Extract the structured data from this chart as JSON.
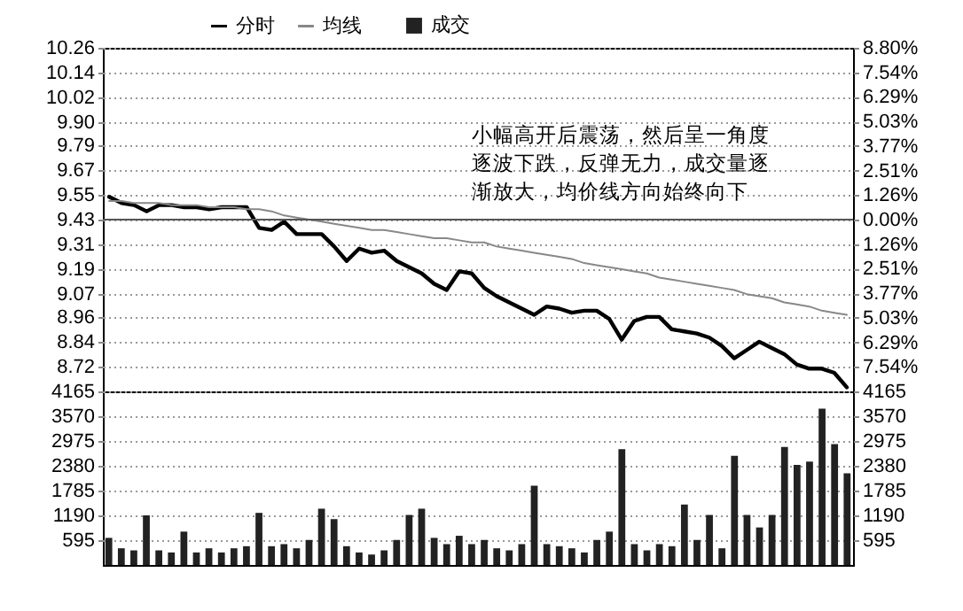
{
  "chart_data": [
    {
      "type": "line",
      "legend": "top left",
      "grid": "y",
      "tick_labels": "y",
      "categories": [
        null,
        null,
        null,
        null,
        null,
        null,
        null,
        null,
        null,
        null,
        null,
        null,
        null,
        null,
        null,
        null,
        null,
        null,
        null,
        null,
        null,
        null,
        null,
        null,
        null,
        null,
        null,
        null,
        null,
        null,
        null,
        null,
        null,
        null,
        null,
        null,
        null,
        null,
        null,
        null,
        null,
        null,
        null,
        null,
        null,
        null,
        null,
        null,
        null,
        null,
        null,
        null,
        null,
        null,
        null,
        null,
        null,
        null,
        null,
        null
      ],
      "series": [
        {
          "name": "分时",
          "color": "#000000",
          "values": [
            9.54,
            9.51,
            9.5,
            9.47,
            9.5,
            9.5,
            9.49,
            9.49,
            9.48,
            9.49,
            9.49,
            9.49,
            9.39,
            9.38,
            9.42,
            9.36,
            9.36,
            9.36,
            9.3,
            9.23,
            9.29,
            9.27,
            9.28,
            9.23,
            9.2,
            9.17,
            9.12,
            9.09,
            9.18,
            9.17,
            9.1,
            9.06,
            9.03,
            9.0,
            8.97,
            9.01,
            9.0,
            8.98,
            8.99,
            8.99,
            8.95,
            8.85,
            8.94,
            8.96,
            8.96,
            8.9,
            8.89,
            8.88,
            8.86,
            8.82,
            8.76,
            8.8,
            8.84,
            8.81,
            8.78,
            8.73,
            8.71,
            8.71,
            8.69,
            8.62
          ]
        },
        {
          "name": "均线",
          "color": "#888888",
          "values": [
            9.52,
            9.52,
            9.51,
            9.51,
            9.51,
            9.5,
            9.5,
            9.5,
            9.49,
            9.49,
            9.49,
            9.48,
            9.48,
            9.47,
            9.45,
            9.44,
            9.43,
            9.42,
            9.41,
            9.4,
            9.39,
            9.38,
            9.38,
            9.37,
            9.36,
            9.35,
            9.34,
            9.34,
            9.33,
            9.32,
            9.32,
            9.3,
            9.29,
            9.28,
            9.27,
            9.26,
            9.25,
            9.24,
            9.22,
            9.21,
            9.2,
            9.19,
            9.18,
            9.17,
            9.15,
            9.14,
            9.13,
            9.12,
            9.11,
            9.1,
            9.09,
            9.07,
            9.06,
            9.05,
            9.03,
            9.02,
            9.01,
            8.99,
            8.98,
            8.97
          ]
        }
      ],
      "ylim": [
        8.6,
        10.26
      ],
      "yticks": [
        10.26,
        10.14,
        10.02,
        {
          "value": 9.9,
          "label": "9.90"
        },
        9.79,
        9.67,
        9.55,
        9.43,
        9.31,
        9.19,
        9.07,
        8.96,
        8.84,
        8.72
      ],
      "y2lim": [
        -8.8,
        8.8
      ],
      "y2ticks": [
        {
          "value": 8.8,
          "label": "8.80%"
        },
        {
          "value": 7.54,
          "label": "7.54%"
        },
        {
          "value": 6.29,
          "label": "6.29%"
        },
        {
          "value": 5.03,
          "label": "5.03%"
        },
        {
          "value": 3.77,
          "label": "3.77%"
        },
        {
          "value": 2.51,
          "label": "2.51%"
        },
        {
          "value": 1.26,
          "label": "1.26%"
        },
        {
          "value": 0,
          "label": "0.00%"
        },
        {
          "value": -1.26,
          "label": "1.26%"
        },
        {
          "value": -2.51,
          "label": "2.51%"
        },
        {
          "value": -3.77,
          "label": "3.77%"
        },
        {
          "value": -5.03,
          "label": "5.03%"
        },
        {
          "value": -6.29,
          "label": "6.29%"
        },
        {
          "value": -7.54,
          "label": "7.54%"
        }
      ],
      "ref_lines": [
        {
          "axis": "y2",
          "value": 0,
          "color": "#555555"
        }
      ],
      "annotations": [
        "小幅高开后震荡，然后呈一角度逐波下跌，反弹无力，成交量逐渐放大，均价线方向始终向下"
      ]
    },
    {
      "type": "bar",
      "legend": "top left",
      "grid": "y",
      "tick_labels": "y",
      "categories": [
        null,
        null,
        null,
        null,
        null,
        null,
        null,
        null,
        null,
        null,
        null,
        null,
        null,
        null,
        null,
        null,
        null,
        null,
        null,
        null,
        null,
        null,
        null,
        null,
        null,
        null,
        null,
        null,
        null,
        null,
        null,
        null,
        null,
        null,
        null,
        null,
        null,
        null,
        null,
        null,
        null,
        null,
        null,
        null,
        null,
        null,
        null,
        null,
        null,
        null,
        null,
        null,
        null,
        null,
        null,
        null,
        null,
        null,
        null,
        null
      ],
      "series": [
        {
          "name": "成交",
          "color": "#222222",
          "values": [
            650,
            400,
            350,
            1190,
            350,
            300,
            800,
            300,
            400,
            300,
            400,
            450,
            1250,
            450,
            500,
            400,
            600,
            1350,
            1100,
            450,
            300,
            250,
            350,
            600,
            1200,
            1350,
            650,
            500,
            700,
            500,
            600,
            400,
            350,
            500,
            1900,
            500,
            450,
            400,
            300,
            600,
            800,
            2780,
            500,
            350,
            500,
            450,
            1450,
            600,
            1200,
            400,
            2620,
            1200,
            900,
            1200,
            2830,
            2400,
            2480,
            3750,
            2900,
            2200
          ]
        }
      ],
      "ylim": [
        0,
        4165
      ],
      "yticks": [
        595,
        1190,
        1785,
        2380,
        2975,
        3570,
        4165
      ],
      "y2lim": [
        0,
        4165
      ],
      "y2ticks": [
        595,
        1190,
        1785,
        2380,
        2975,
        3570,
        4165
      ]
    }
  ]
}
